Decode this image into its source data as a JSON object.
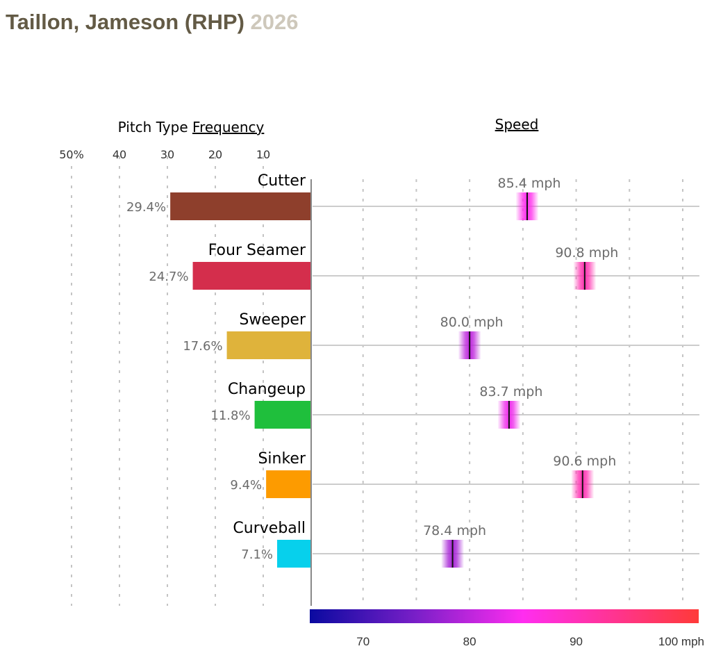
{
  "title": {
    "player": "Taillon, Jameson (RHP)",
    "year": "2026"
  },
  "chart_data": [
    {
      "type": "bar",
      "orientation": "horizontal",
      "title_prefix": "Pitch Type",
      "title_link": "Frequency",
      "xlim": [
        0,
        50
      ],
      "x_ticks": [
        {
          "value": 50,
          "label": "50%"
        },
        {
          "value": 40,
          "label": "40"
        },
        {
          "value": 30,
          "label": "30"
        },
        {
          "value": 20,
          "label": "20"
        },
        {
          "value": 10,
          "label": "10"
        }
      ],
      "grid": true,
      "categories": [
        "Cutter",
        "Four Seamer",
        "Sweeper",
        "Changeup",
        "Sinker",
        "Curveball"
      ],
      "values": [
        29.4,
        24.7,
        17.6,
        11.8,
        9.4,
        7.1
      ],
      "value_labels": [
        "29.4%",
        "24.7%",
        "17.6%",
        "11.8%",
        "9.4%",
        "7.1%"
      ],
      "colors": [
        "#8e3f2c",
        "#d42e4c",
        "#dfb33b",
        "#1fbf3c",
        "#fd9b00",
        "#07d0ec"
      ]
    },
    {
      "type": "scatter",
      "title_link": "Speed",
      "xlim": [
        65,
        101.5
      ],
      "x_gridlines": [
        70,
        75,
        80,
        85,
        90,
        95,
        100
      ],
      "categories": [
        "Cutter",
        "Four Seamer",
        "Sweeper",
        "Changeup",
        "Sinker",
        "Curveball"
      ],
      "values": [
        85.4,
        90.8,
        80.0,
        83.7,
        90.6,
        78.4
      ],
      "value_labels": [
        "85.4 mph",
        "90.8 mph",
        "80.0 mph",
        "83.7 mph",
        "90.6 mph",
        "78.4 mph"
      ],
      "colorbar": {
        "range": [
          65,
          101.5
        ],
        "stops": [
          {
            "value": 65,
            "color": "#0a0aa0"
          },
          {
            "value": 75,
            "color": "#7a1fc8"
          },
          {
            "value": 85,
            "color": "#ff2df0"
          },
          {
            "value": 101.5,
            "color": "#ff3a38"
          }
        ],
        "ticks": [
          {
            "value": 70,
            "label": "70"
          },
          {
            "value": 80,
            "label": "80"
          },
          {
            "value": 90,
            "label": "90"
          },
          {
            "value": 100,
            "label": "100 mph"
          }
        ]
      }
    }
  ]
}
